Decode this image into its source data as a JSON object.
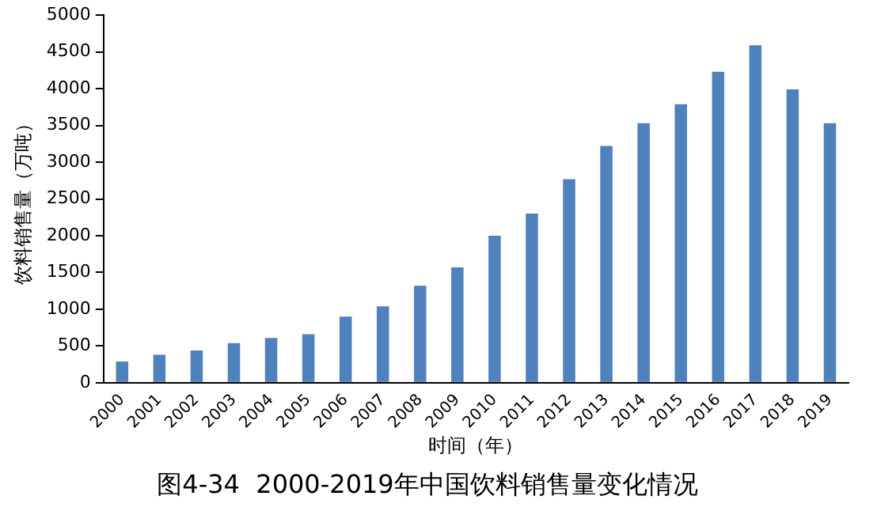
{
  "chart_data": {
    "type": "bar",
    "title": "图4-34  2000-2019年中国饮料销售量变化情况",
    "xlabel": "时间（年）",
    "ylabel": "饮料销售量（万吨）",
    "categories": [
      "2000",
      "2001",
      "2002",
      "2003",
      "2004",
      "2005",
      "2006",
      "2007",
      "2008",
      "2009",
      "2010",
      "2011",
      "2012",
      "2013",
      "2014",
      "2015",
      "2016",
      "2017",
      "2018",
      "2019"
    ],
    "values": [
      290,
      380,
      440,
      540,
      610,
      660,
      900,
      1040,
      1320,
      1570,
      2000,
      2300,
      2770,
      3220,
      3530,
      3790,
      4230,
      4590,
      3990,
      3530
    ],
    "color": "#4f81bd",
    "ylim": [
      0,
      5000
    ],
    "yticks": [
      0,
      500,
      1000,
      1500,
      2000,
      2500,
      3000,
      3500,
      4000,
      4500,
      5000
    ],
    "grid": false,
    "legend": false
  }
}
